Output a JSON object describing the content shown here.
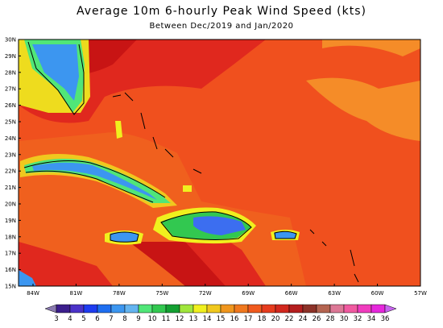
{
  "title": "Average 10m 6-hourly Peak Wind Speed (kts)",
  "subtitle": "Between Dec/2019 and Jan/2020",
  "lat_labels": [
    "30N",
    "29N",
    "28N",
    "27N",
    "26N",
    "25N",
    "24N",
    "23N",
    "22N",
    "21N",
    "20N",
    "19N",
    "18N",
    "17N",
    "16N",
    "15N"
  ],
  "lon_labels": [
    "84W",
    "81W",
    "78W",
    "75W",
    "72W",
    "69W",
    "66W",
    "63W",
    "60W",
    "57W"
  ],
  "colorbar": {
    "labels": [
      "3",
      "4",
      "5",
      "6",
      "7",
      "8",
      "9",
      "10",
      "11",
      "12",
      "13",
      "14",
      "15",
      "16",
      "17",
      "18",
      "20",
      "22",
      "24",
      "26",
      "28",
      "30",
      "32",
      "34",
      "36"
    ],
    "colors": [
      "#8a7ab0",
      "#3c1e8c",
      "#4b32c8",
      "#1e3cf0",
      "#1e6ef0",
      "#3c96f0",
      "#64b4f0",
      "#50e678",
      "#32c850",
      "#14a032",
      "#a0e63c",
      "#f0f01e",
      "#f0c81e",
      "#f0961e",
      "#f0781e",
      "#f05a1e",
      "#e63c1e",
      "#d2281e",
      "#b41e1e",
      "#8c3228",
      "#b46450",
      "#dc7896",
      "#f05aa0",
      "#f03cbe",
      "#e628dc",
      "#c864f0"
    ]
  }
}
